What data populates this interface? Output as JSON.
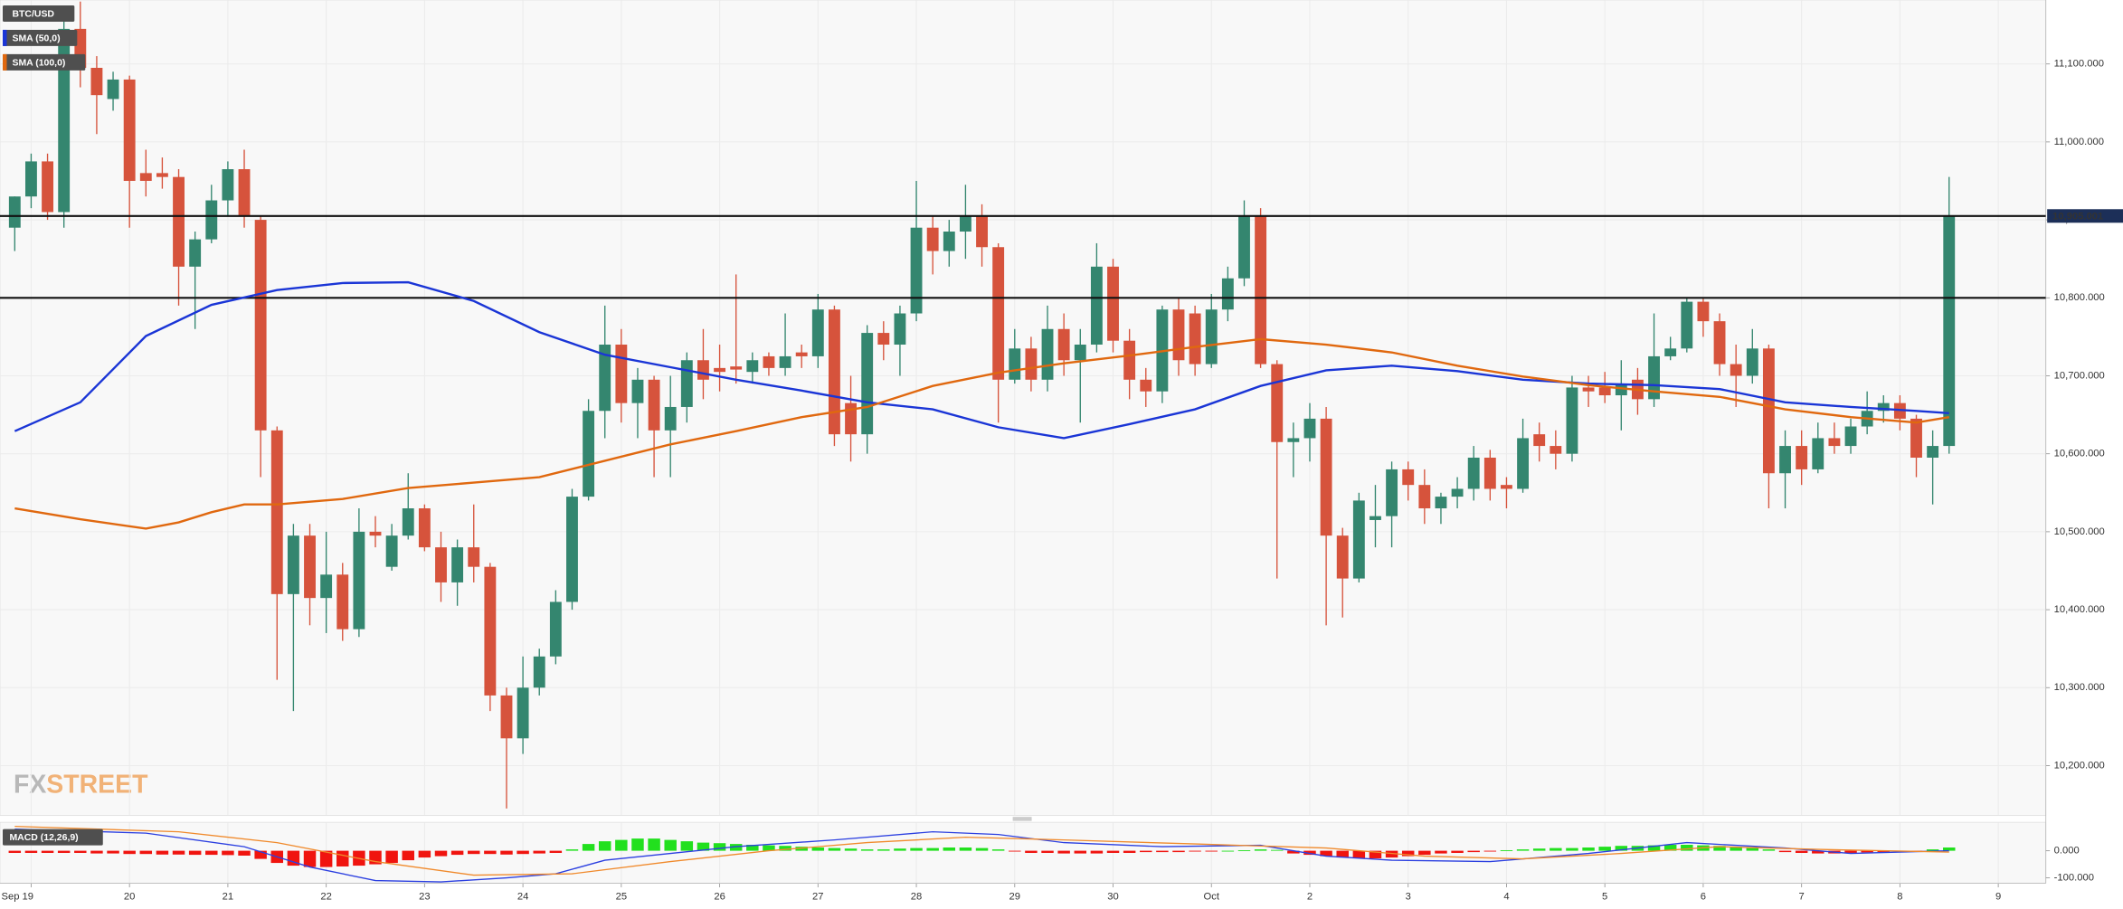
{
  "chart_data": [
    {
      "type": "candlestick",
      "title": "BTC/USD",
      "up_color": "#34866f",
      "down_color": "#d6533c",
      "open": [
        10890,
        10930,
        10975,
        10910,
        11145,
        11095,
        11055,
        11080,
        10960,
        10960,
        10955,
        10840,
        10875,
        10925,
        10965,
        10900,
        10630,
        10420,
        10495,
        10415,
        10445,
        10375,
        10500,
        10455,
        10495,
        10530,
        10480,
        10435,
        10480,
        10455,
        10290,
        10235,
        10300,
        10340,
        10410,
        10545,
        10655,
        10740,
        10665,
        10695,
        10630,
        10660,
        10720,
        10710,
        10712,
        10705,
        10725,
        10710,
        10730,
        10725,
        10785,
        10665,
        10625,
        10755,
        10740,
        10780,
        10890,
        10860,
        10885,
        10905,
        10865,
        10695,
        10735,
        10695,
        10760,
        10720,
        10740,
        10840,
        10745,
        10695,
        10680,
        10785,
        10780,
        10715,
        10785,
        10825,
        10905,
        10715,
        10615,
        10620,
        10645,
        10495,
        10440,
        10515,
        10520,
        10580,
        10560,
        10530,
        10545,
        10555,
        10595,
        10560,
        10555,
        10625,
        10610,
        10600,
        10685,
        10685,
        10675,
        10695,
        10670,
        10725,
        10735,
        10795,
        10770,
        10715,
        10700,
        10735,
        10575,
        10610,
        10580,
        10620,
        10610,
        10635,
        10655,
        10665,
        10645,
        10595,
        10610
      ],
      "high": [
        10930,
        10985,
        10985,
        11175,
        11180,
        11110,
        11090,
        11085,
        10990,
        10980,
        10965,
        10885,
        10945,
        10975,
        10990,
        10905,
        10635,
        10510,
        10510,
        10500,
        10460,
        10530,
        10520,
        10510,
        10575,
        10535,
        10500,
        10490,
        10535,
        10460,
        10300,
        10340,
        10350,
        10425,
        10555,
        10670,
        10790,
        10760,
        10710,
        10700,
        10700,
        10730,
        10760,
        10740,
        10830,
        10730,
        10730,
        10780,
        10740,
        10805,
        10790,
        10700,
        10765,
        10770,
        10790,
        10950,
        10905,
        10900,
        10945,
        10920,
        10870,
        10760,
        10750,
        10790,
        10780,
        10760,
        10870,
        10850,
        10760,
        10710,
        10790,
        10800,
        10790,
        10805,
        10840,
        10925,
        10915,
        10720,
        10640,
        10665,
        10660,
        10505,
        10550,
        10560,
        10590,
        10590,
        10580,
        10550,
        10570,
        10610,
        10605,
        10570,
        10645,
        10640,
        10630,
        10700,
        10700,
        10705,
        10720,
        10710,
        10780,
        10750,
        10800,
        10800,
        10780,
        10740,
        10760,
        10740,
        10630,
        10630,
        10640,
        10640,
        10645,
        10680,
        10675,
        10675,
        10650,
        10630,
        10955
      ],
      "low": [
        10860,
        10915,
        10900,
        10890,
        11070,
        11010,
        11040,
        10890,
        10930,
        10940,
        10790,
        10760,
        10870,
        10905,
        10890,
        10570,
        10310,
        10270,
        10380,
        10370,
        10360,
        10365,
        10480,
        10450,
        10490,
        10475,
        10410,
        10405,
        10435,
        10270,
        10145,
        10215,
        10290,
        10330,
        10400,
        10540,
        10620,
        10640,
        10620,
        10570,
        10570,
        10640,
        10670,
        10680,
        10690,
        10690,
        10700,
        10700,
        10710,
        10710,
        10610,
        10590,
        10600,
        10720,
        10700,
        10770,
        10830,
        10840,
        10850,
        10840,
        10640,
        10690,
        10680,
        10680,
        10700,
        10640,
        10730,
        10730,
        10670,
        10660,
        10665,
        10700,
        10700,
        10710,
        10770,
        10815,
        10710,
        10440,
        10570,
        10590,
        10380,
        10390,
        10435,
        10480,
        10480,
        10540,
        10510,
        10510,
        10530,
        10540,
        10540,
        10530,
        10550,
        10590,
        10580,
        10590,
        10660,
        10665,
        10630,
        10650,
        10660,
        10720,
        10730,
        10750,
        10700,
        10660,
        10690,
        10530,
        10530,
        10560,
        10575,
        10600,
        10600,
        10625,
        10640,
        10630,
        10570,
        10535,
        10600
      ],
      "close": [
        10930,
        10975,
        10910,
        11145,
        11095,
        11060,
        11080,
        10950,
        10950,
        10955,
        10840,
        10875,
        10925,
        10965,
        10905,
        10630,
        10420,
        10495,
        10415,
        10445,
        10375,
        10500,
        10495,
        10495,
        10530,
        10480,
        10435,
        10480,
        10455,
        10290,
        10235,
        10300,
        10340,
        10410,
        10545,
        10655,
        10740,
        10665,
        10695,
        10630,
        10660,
        10720,
        10695,
        10705,
        10708,
        10720,
        10710,
        10725,
        10725,
        10785,
        10625,
        10625,
        10755,
        10740,
        10780,
        10890,
        10860,
        10885,
        10905,
        10865,
        10695,
        10735,
        10695,
        10760,
        10720,
        10740,
        10840,
        10745,
        10695,
        10680,
        10785,
        10720,
        10715,
        10785,
        10825,
        10905,
        10715,
        10615,
        10620,
        10645,
        10495,
        10440,
        10540,
        10520,
        10580,
        10560,
        10530,
        10545,
        10555,
        10595,
        10555,
        10555,
        10620,
        10610,
        10600,
        10685,
        10680,
        10675,
        10690,
        10670,
        10725,
        10735,
        10795,
        10770,
        10715,
        10700,
        10735,
        10575,
        10610,
        10580,
        10620,
        10610,
        10635,
        10655,
        10665,
        10645,
        10595,
        10610,
        10905
      ],
      "overlays": [
        {
          "name": "SMA (50,0)",
          "color": "#1a35d6",
          "x": [
            0,
            4,
            8,
            12,
            16,
            20,
            24,
            28,
            32,
            36,
            40,
            44,
            48,
            52,
            56,
            60,
            64,
            68,
            72,
            76,
            80,
            84,
            88,
            92,
            96,
            100,
            104,
            108,
            112,
            116,
            118
          ],
          "values": [
            10629,
            10666,
            10751,
            10791,
            10810,
            10819,
            10820,
            10796,
            10756,
            10727,
            10711,
            10695,
            10681,
            10666,
            10657,
            10634,
            10620,
            10638,
            10657,
            10687,
            10707,
            10713,
            10706,
            10695,
            10690,
            10688,
            10683,
            10666,
            10660,
            10655,
            10652
          ]
        },
        {
          "name": "SMA (100,0)",
          "color": "#e0680f",
          "x": [
            0,
            4,
            8,
            10,
            12,
            14,
            16,
            20,
            24,
            28,
            32,
            36,
            40,
            44,
            48,
            52,
            56,
            60,
            64,
            68,
            72,
            76,
            80,
            84,
            88,
            92,
            96,
            100,
            104,
            108,
            112,
            116,
            118
          ],
          "values": [
            10530,
            10516,
            10504,
            10512,
            10525,
            10535,
            10535,
            10542,
            10556,
            10563,
            10570,
            10591,
            10612,
            10629,
            10647,
            10660,
            10687,
            10704,
            10716,
            10726,
            10737,
            10747,
            10740,
            10730,
            10713,
            10699,
            10688,
            10680,
            10673,
            10657,
            10647,
            10640,
            10647
          ]
        }
      ],
      "hlines": [
        {
          "value": 10905.001,
          "label": "10,905.001"
        },
        {
          "value": 10800
        }
      ],
      "xlim": [
        -0.9,
        123.9
      ],
      "xticks": [
        {
          "value": 1,
          "label": "Sep 19"
        },
        {
          "value": 7,
          "label": "20"
        },
        {
          "value": 13,
          "label": "21"
        },
        {
          "value": 19,
          "label": "22"
        },
        {
          "value": 25,
          "label": "23"
        },
        {
          "value": 31,
          "label": "24"
        },
        {
          "value": 37,
          "label": "25"
        },
        {
          "value": 43,
          "label": "26"
        },
        {
          "value": 49,
          "label": "27"
        },
        {
          "value": 55,
          "label": "28"
        },
        {
          "value": 61,
          "label": "29"
        },
        {
          "value": 67,
          "label": "30"
        },
        {
          "value": 73,
          "label": "Oct"
        },
        {
          "value": 79,
          "label": "2"
        },
        {
          "value": 85,
          "label": "3"
        },
        {
          "value": 91,
          "label": "4"
        },
        {
          "value": 97,
          "label": "5"
        },
        {
          "value": 103,
          "label": "6"
        },
        {
          "value": 109,
          "label": "7"
        },
        {
          "value": 115,
          "label": "8"
        },
        {
          "value": 121,
          "label": "9"
        }
      ],
      "ylim": [
        10136,
        11182
      ],
      "yticks": [
        {
          "value": 10200,
          "label": "10,200.000"
        },
        {
          "value": 10300,
          "label": "10,300.000"
        },
        {
          "value": 10400,
          "label": "10,400.000"
        },
        {
          "value": 10500,
          "label": "10,500.000"
        },
        {
          "value": 10600,
          "label": "10,600.000"
        },
        {
          "value": 10700,
          "label": "10,700.000"
        },
        {
          "value": 10800,
          "label": "10,800.000"
        },
        {
          "value": 10900,
          "label": "10,900.000"
        },
        {
          "value": 11000,
          "label": "11,000.000"
        },
        {
          "value": 11100,
          "label": "11,100.000"
        }
      ],
      "grid": true
    },
    {
      "type": "macd",
      "title": "MACD (12,26,9)",
      "up_color": "#22e01e",
      "down_color": "#f0140f",
      "histogram": [
        -8,
        -8,
        -8,
        -8,
        -8,
        -10,
        -10,
        -12,
        -12,
        -14,
        -14,
        -15,
        -15,
        -16,
        -18,
        -30,
        -45,
        -55,
        -60,
        -60,
        -58,
        -55,
        -50,
        -45,
        -35,
        -25,
        -20,
        -15,
        -12,
        -12,
        -14,
        -12,
        -10,
        -8,
        5,
        25,
        35,
        40,
        45,
        45,
        40,
        35,
        30,
        28,
        25,
        22,
        20,
        18,
        15,
        12,
        10,
        8,
        5,
        5,
        8,
        10,
        10,
        12,
        12,
        10,
        5,
        -3,
        -8,
        -8,
        -10,
        -10,
        -10,
        -8,
        -8,
        -5,
        -5,
        -5,
        -3,
        -2,
        0,
        2,
        5,
        3,
        -10,
        -15,
        -20,
        -25,
        -28,
        -28,
        -25,
        -20,
        -15,
        -10,
        -8,
        -5,
        -3,
        2,
        5,
        8,
        10,
        10,
        12,
        15,
        18,
        18,
        20,
        22,
        22,
        20,
        18,
        15,
        10,
        5,
        -5,
        -8,
        -10,
        -10,
        -8,
        -6,
        -5,
        -3,
        -2,
        5,
        12
      ],
      "series": [
        {
          "color": "#2b3fe0",
          "x": [
            0,
            8,
            14,
            18,
            22,
            26,
            30,
            33,
            36,
            40,
            44,
            50,
            56,
            60,
            64,
            70,
            76,
            80,
            84,
            90,
            96,
            102,
            108,
            112,
            118
          ],
          "values": [
            80,
            65,
            15,
            -60,
            -110,
            -115,
            -100,
            -85,
            -35,
            -10,
            15,
            40,
            70,
            60,
            30,
            15,
            20,
            -20,
            -35,
            -40,
            -10,
            30,
            10,
            -10,
            0
          ]
        },
        {
          "color": "#f08a2c",
          "x": [
            0,
            10,
            16,
            22,
            28,
            34,
            40,
            46,
            52,
            58,
            64,
            72,
            80,
            86,
            92,
            98,
            104,
            110,
            118
          ],
          "values": [
            90,
            70,
            30,
            -40,
            -90,
            -85,
            -40,
            0,
            30,
            50,
            40,
            25,
            10,
            -20,
            -30,
            -10,
            15,
            5,
            -5
          ]
        }
      ],
      "ylim": [
        -120,
        105
      ],
      "yticks": [
        {
          "value": 0,
          "label": "0.000"
        },
        {
          "value": -100,
          "label": "-100.000"
        }
      ]
    }
  ],
  "logo": {
    "left": "FX",
    "right": "STREET"
  }
}
